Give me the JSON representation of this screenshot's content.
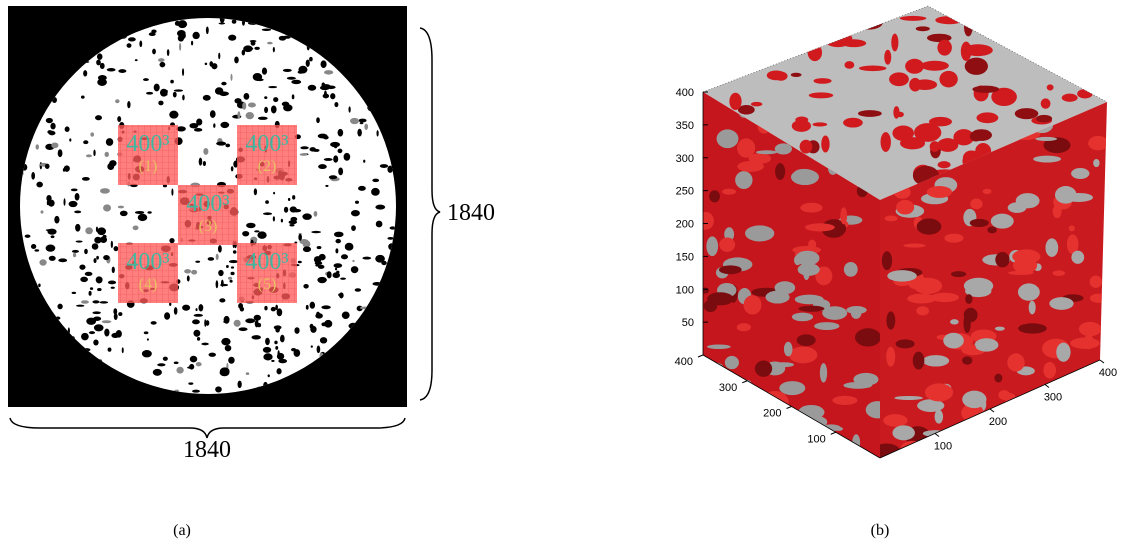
{
  "panel_a": {
    "subvolumes": [
      {
        "size": "400³",
        "index": "(1)"
      },
      {
        "size": "400³",
        "index": "(2)"
      },
      {
        "size": "400³",
        "index": "(3)"
      },
      {
        "size": "400³",
        "index": "(4)"
      },
      {
        "size": "400³",
        "index": "(5)"
      }
    ],
    "height_label": "1840",
    "width_label": "1840",
    "caption": "(a)"
  },
  "panel_b": {
    "z_ticks": [
      400,
      350,
      300,
      250,
      200,
      150,
      100,
      50
    ],
    "left_ticks": [
      400,
      300,
      200,
      100
    ],
    "right_ticks": [
      100,
      200,
      300,
      400
    ],
    "caption": "(b)"
  }
}
